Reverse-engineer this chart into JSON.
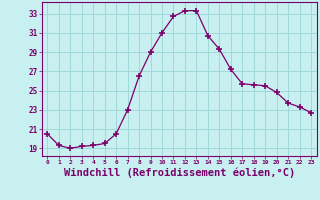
{
  "x": [
    0,
    1,
    2,
    3,
    4,
    5,
    6,
    7,
    8,
    9,
    10,
    11,
    12,
    13,
    14,
    15,
    16,
    17,
    18,
    19,
    20,
    21,
    22,
    23
  ],
  "y": [
    20.5,
    19.3,
    19.0,
    19.2,
    19.3,
    19.5,
    20.5,
    23.0,
    26.5,
    29.0,
    31.0,
    32.7,
    33.3,
    33.3,
    30.7,
    29.3,
    27.2,
    25.7,
    25.6,
    25.5,
    24.8,
    23.7,
    23.3,
    22.7
  ],
  "line_color": "#7B006B",
  "marker": "+",
  "marker_size": 4,
  "marker_lw": 1.2,
  "bg_color": "#c8f0f0",
  "grid_color": "#a0d8d8",
  "spine_color": "#7B006B",
  "xlabel": "Windchill (Refroidissement éolien,°C)",
  "xlabel_fontsize": 7.5,
  "ytick_labels": [
    "19",
    "21",
    "23",
    "25",
    "27",
    "29",
    "31",
    "33"
  ],
  "ytick_values": [
    19,
    21,
    23,
    25,
    27,
    29,
    31,
    33
  ],
  "ylim": [
    18.2,
    34.2
  ],
  "xlim": [
    -0.5,
    23.5
  ],
  "xtick_labels": [
    "0",
    "1",
    "2",
    "3",
    "4",
    "5",
    "6",
    "7",
    "8",
    "9",
    "10",
    "11",
    "12",
    "13",
    "14",
    "15",
    "16",
    "17",
    "18",
    "19",
    "20",
    "21",
    "22",
    "23"
  ],
  "xtick_values": [
    0,
    1,
    2,
    3,
    4,
    5,
    6,
    7,
    8,
    9,
    10,
    11,
    12,
    13,
    14,
    15,
    16,
    17,
    18,
    19,
    20,
    21,
    22,
    23
  ]
}
